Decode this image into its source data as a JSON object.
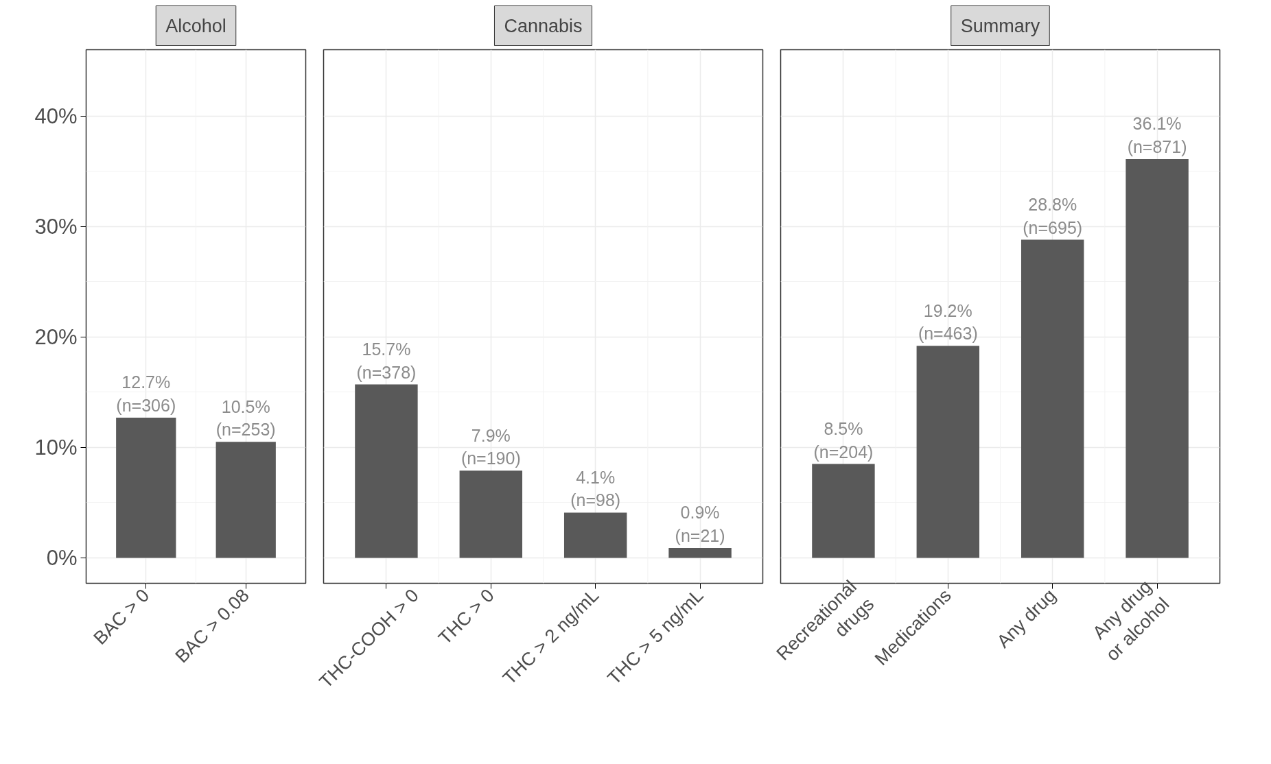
{
  "chart_data": [
    {
      "type": "bar",
      "title": "Alcohol",
      "categories": [
        "BAC > 0",
        "BAC > 0.08"
      ],
      "values": [
        12.7,
        10.5
      ],
      "color": "#595959",
      "value_labels": [
        "12.7%\n(n=306)",
        "10.5%\n(n=253)"
      ],
      "ylim": [
        -2.3,
        46
      ],
      "yticks": [
        {
          "value": 0,
          "label": "0%"
        },
        {
          "value": 10,
          "label": "10%"
        },
        {
          "value": 20,
          "label": "20%"
        },
        {
          "value": 30,
          "label": "30%"
        },
        {
          "value": 40,
          "label": "40%"
        }
      ],
      "grid": true
    },
    {
      "type": "bar",
      "title": "Cannabis",
      "categories": [
        "THC-COOH > 0",
        "THC > 0",
        "THC > 2 ng/mL",
        "THC > 5 ng/mL"
      ],
      "values": [
        15.7,
        7.9,
        4.1,
        0.9
      ],
      "color": "#595959",
      "value_labels": [
        "15.7%\n(n=378)",
        "7.9%\n(n=190)",
        "4.1%\n(n=98)",
        "0.9%\n(n=21)"
      ],
      "ylim": [
        -2.3,
        46
      ],
      "grid": true,
      "tick_labels": "x"
    },
    {
      "type": "bar",
      "title": "Summary",
      "categories": [
        "Recreational\ndrugs",
        "Medications",
        "Any drug",
        "Any drug\nor alcohol"
      ],
      "values": [
        8.5,
        19.2,
        28.8,
        36.1
      ],
      "color": "#595959",
      "value_labels": [
        "8.5%\n(n=204)",
        "19.2%\n(n=463)",
        "28.8%\n(n=695)",
        "36.1%\n(n=871)"
      ],
      "ylim": [
        -2.3,
        46
      ],
      "grid": true,
      "tick_labels": "x"
    }
  ]
}
